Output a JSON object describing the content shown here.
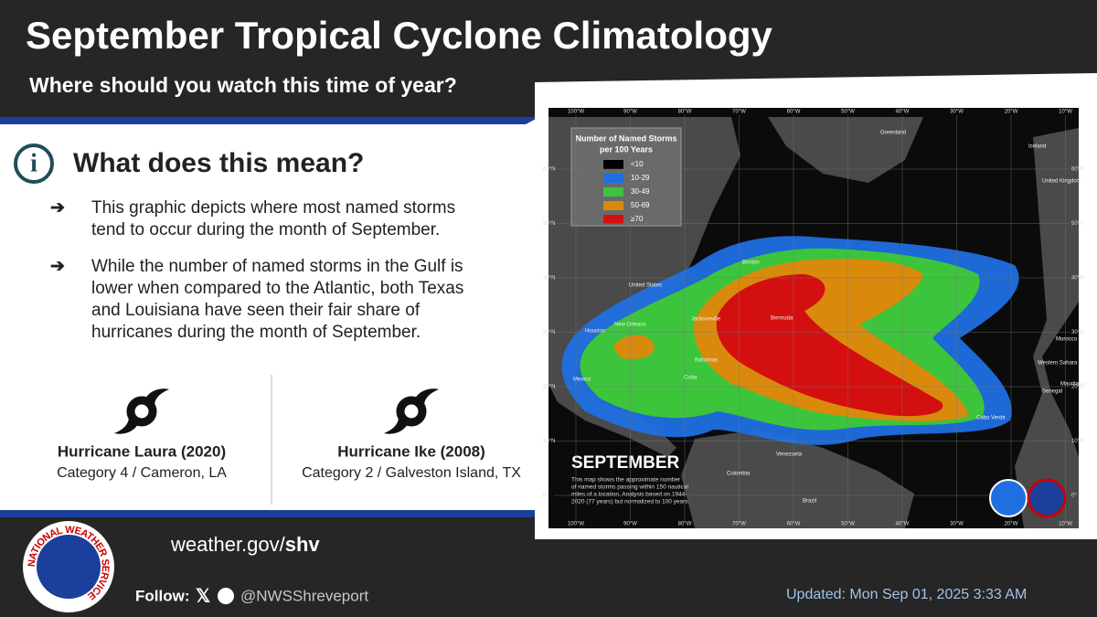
{
  "header": {
    "title": "September Tropical Cyclone Climatology",
    "subtitle": "Where should you watch this time of year?"
  },
  "section": {
    "heading": "What does this mean?",
    "bullets": [
      [
        "This graphic depicts where most named storms",
        "tend to occur during the month of September."
      ],
      [
        "While the number of named storms in the Gulf is",
        "lower when compared to the Atlantic, both Texas",
        "and Louisiana have seen their fair share of",
        "hurricanes during the month of September."
      ]
    ]
  },
  "hurricanes": [
    {
      "name": "Hurricane Laura (2020)",
      "detail": "Category 4 / Cameron, LA"
    },
    {
      "name": "Hurricane Ike (2008)",
      "detail": "Category 2 / Galveston Island, TX"
    }
  ],
  "map": {
    "legend": {
      "title": [
        "Number of Named Storms",
        "per 100 Years"
      ],
      "items": [
        {
          "label": "<10",
          "color": "#000000"
        },
        {
          "label": "10-29",
          "color": "#1f6fe0"
        },
        {
          "label": "30-49",
          "color": "#3cc43c"
        },
        {
          "label": "50-69",
          "color": "#d98a0c"
        },
        {
          "label": "≥70",
          "color": "#d40f0f"
        }
      ]
    },
    "title": "SEPTEMBER",
    "caption": [
      "This map shows the approximate number",
      "of named storms passing within 150 nautical",
      "miles of a location. Analysis based on 1944-",
      "2020 (77 years) but normalized to 100 years."
    ],
    "lon_labels": [
      "100°W",
      "90°W",
      "80°W",
      "70°W",
      "60°W",
      "50°W",
      "40°W",
      "30°W",
      "20°W",
      "10°W"
    ],
    "lat_labels": [
      "60°N",
      "50°N",
      "40°N",
      "30°N",
      "20°N",
      "10°N",
      "0°"
    ],
    "places": [
      "Greenland",
      "Iceland",
      "United Kingdom",
      "United States",
      "Houston",
      "New Orleans",
      "Jacksonville",
      "Boston",
      "Bermuda",
      "Mexico",
      "Cuba",
      "Bahamas",
      "Venezuela",
      "Colombia",
      "Brazil",
      "Cabo Verde",
      "Morocco",
      "Western Sahara",
      "Mauritania",
      "Senegal"
    ]
  },
  "footer": {
    "logo_text": "NATIONAL WEATHER SERVICE",
    "site": "weather.gov/",
    "site_bold": "shv",
    "follow": "Follow:",
    "handle": "@NWSShreveport",
    "updated": "Updated: Mon Sep 01, 2025 3:33 AM"
  }
}
